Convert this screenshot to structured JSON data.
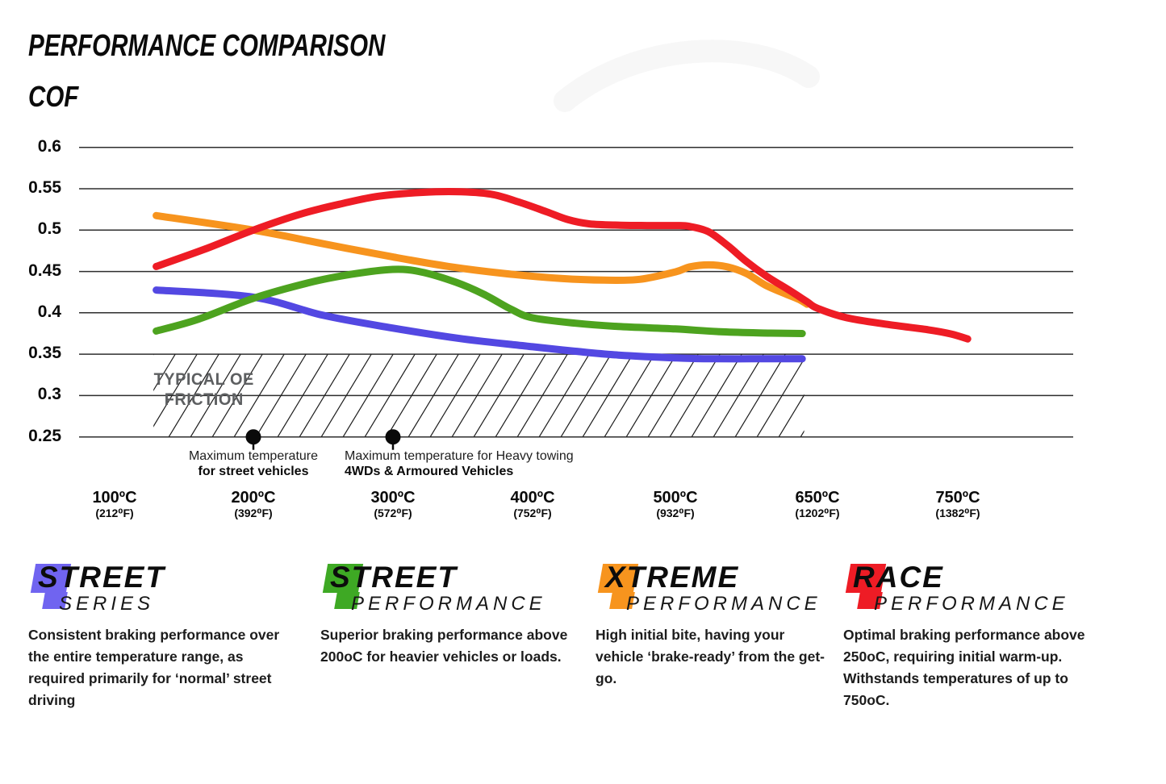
{
  "header": {
    "title": "PERFORMANCE COMPARISON",
    "y_axis_name": "COF"
  },
  "chart_data": {
    "type": "line",
    "title": "PERFORMANCE COMPARISON",
    "ylabel": "COF",
    "grid": true,
    "ylim": [
      0.25,
      0.6
    ],
    "y_axis": {
      "tick_values": [
        0.6,
        0.55,
        0.5,
        0.45,
        0.4,
        0.35,
        0.3,
        0.25
      ],
      "tick_labels": [
        "0.6",
        "0.55",
        "0.5",
        "0.45",
        "0.4",
        "0.35",
        "0.3",
        "0.25"
      ]
    },
    "x_axis": {
      "unit": "°C",
      "tick_values": [
        100,
        200,
        300,
        400,
        500,
        650,
        750
      ],
      "tick_labels_c": [
        "100ºC",
        "200ºC",
        "300ºC",
        "400ºC",
        "500ºC",
        "650ºC",
        "750ºC"
      ],
      "tick_labels_f": [
        "(212⁰F)",
        "(392⁰F)",
        "(572⁰F)",
        "(752⁰F)",
        "(932⁰F)",
        "(1202⁰F)",
        "(1382⁰F)"
      ]
    },
    "series": [
      {
        "name": "Street Series",
        "color": "#5348e2",
        "points": [
          [
            130,
            0.4275
          ],
          [
            200,
            0.419
          ],
          [
            250,
            0.397
          ],
          [
            300,
            0.3815
          ],
          [
            350,
            0.3685
          ],
          [
            400,
            0.359
          ],
          [
            430,
            0.3535
          ],
          [
            460,
            0.349
          ],
          [
            500,
            0.3455
          ],
          [
            530,
            0.3445
          ],
          [
            580,
            0.3445
          ],
          [
            634,
            0.3445
          ]
        ]
      },
      {
        "name": "Street Performance",
        "color": "#4da31f",
        "points": [
          [
            130,
            0.378
          ],
          [
            160,
            0.392
          ],
          [
            200,
            0.4175
          ],
          [
            240,
            0.4365
          ],
          [
            270,
            0.4465
          ],
          [
            300,
            0.4525
          ],
          [
            320,
            0.4495
          ],
          [
            345,
            0.437
          ],
          [
            365,
            0.4225
          ],
          [
            385,
            0.404
          ],
          [
            400,
            0.394
          ],
          [
            430,
            0.3875
          ],
          [
            460,
            0.3835
          ],
          [
            500,
            0.3805
          ],
          [
            550,
            0.377
          ],
          [
            600,
            0.3755
          ],
          [
            634,
            0.375
          ]
        ]
      },
      {
        "name": "Xtreme Performance",
        "color": "#f7941e",
        "points": [
          [
            130,
            0.5175
          ],
          [
            200,
            0.5
          ],
          [
            250,
            0.4835
          ],
          [
            300,
            0.4675
          ],
          [
            340,
            0.456
          ],
          [
            380,
            0.4475
          ],
          [
            420,
            0.4415
          ],
          [
            450,
            0.4395
          ],
          [
            475,
            0.4405
          ],
          [
            500,
            0.4495
          ],
          [
            515,
            0.4555
          ],
          [
            535,
            0.458
          ],
          [
            555,
            0.4555
          ],
          [
            575,
            0.4475
          ],
          [
            595,
            0.4335
          ],
          [
            615,
            0.4235
          ],
          [
            630,
            0.4165
          ],
          [
            639,
            0.4105
          ]
        ]
      },
      {
        "name": "Race Performance",
        "color": "#ee1c25",
        "points": [
          [
            130,
            0.456
          ],
          [
            165,
            0.477
          ],
          [
            200,
            0.5
          ],
          [
            235,
            0.52
          ],
          [
            265,
            0.5325
          ],
          [
            290,
            0.541
          ],
          [
            320,
            0.5455
          ],
          [
            345,
            0.5465
          ],
          [
            370,
            0.5435
          ],
          [
            390,
            0.534
          ],
          [
            410,
            0.522
          ],
          [
            425,
            0.5125
          ],
          [
            440,
            0.5075
          ],
          [
            460,
            0.506
          ],
          [
            480,
            0.5055
          ],
          [
            500,
            0.5055
          ],
          [
            515,
            0.5045
          ],
          [
            535,
            0.498
          ],
          [
            555,
            0.4815
          ],
          [
            575,
            0.462
          ],
          [
            596,
            0.4445
          ],
          [
            620,
            0.4275
          ],
          [
            639,
            0.4135
          ],
          [
            650,
            0.4055
          ],
          [
            671,
            0.394
          ],
          [
            700,
            0.386
          ],
          [
            729,
            0.3795
          ],
          [
            745,
            0.3745
          ],
          [
            757,
            0.3685
          ]
        ]
      }
    ],
    "oe_region": {
      "label_lines": [
        "TYPICAL OE",
        "FRICTION"
      ],
      "top": 0.35,
      "bottom": 0.25,
      "t_start": 128,
      "t_end": 636
    },
    "markers": [
      {
        "t": 200,
        "v": 0.25,
        "align": "center",
        "line1": "Maximum temperature",
        "line2": "for street vehicles"
      },
      {
        "t": 300,
        "v": 0.25,
        "align": "left",
        "line1": "Maximum temperature for Heavy towing",
        "line2": "4WDs & Armoured Vehicles"
      }
    ]
  },
  "legends": [
    {
      "word1": "STREET",
      "word2": "SERIES",
      "color": "#7064f0",
      "description": "Consistent braking performance over the entire temperature range, as required primarily for ‘normal’ street driving"
    },
    {
      "word1": "STREET",
      "word2": "PERFORMANCE",
      "color": "#3ea924",
      "description": "Superior braking performance above 200oC for heavier vehicles or loads."
    },
    {
      "word1": "XTREME",
      "word2": "PERFORMANCE",
      "color": "#f7941e",
      "description": "High initial bite, having your vehicle ‘brake-ready’ from the get-go."
    },
    {
      "word1": "RACE",
      "word2": "PERFORMANCE",
      "color": "#ee1c25",
      "description": "Optimal braking performance above 250oC, requiring initial warm-up. Withstands temperatures of up to 750oC."
    }
  ]
}
